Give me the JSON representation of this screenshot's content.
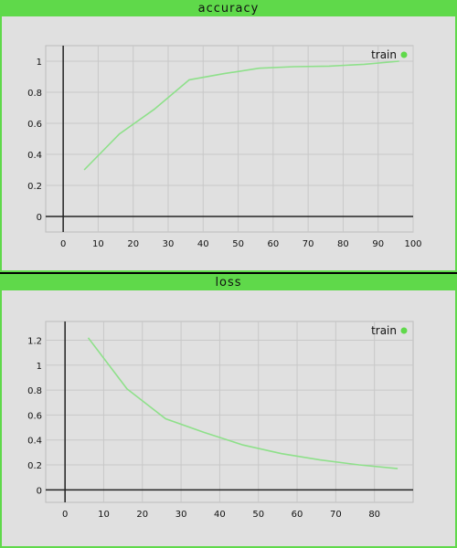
{
  "colors": {
    "accent": "#5fd94a",
    "panel_bg": "#e0e0e0",
    "plot_bg": "#e0e0e0",
    "grid": "#c8c8c8",
    "axis": "#222222",
    "series": "#8ee08a"
  },
  "panels": [
    {
      "title": "accuracy"
    },
    {
      "title": "loss"
    }
  ],
  "chart_data": [
    {
      "type": "line",
      "title": "accuracy",
      "xlabel": "",
      "ylabel": "",
      "xlim": [
        -5,
        100
      ],
      "ylim": [
        -0.1,
        1.1
      ],
      "xticks": [
        0,
        10,
        20,
        30,
        40,
        50,
        60,
        70,
        80,
        90,
        100
      ],
      "yticks": [
        0,
        0.2,
        0.4,
        0.6,
        0.8,
        1
      ],
      "grid": true,
      "legend": "top-right",
      "series": [
        {
          "name": "train",
          "x": [
            6,
            16,
            26,
            36,
            46,
            56,
            66,
            76,
            86,
            96
          ],
          "y": [
            0.3,
            0.53,
            0.69,
            0.88,
            0.92,
            0.955,
            0.965,
            0.968,
            0.98,
            1.0
          ]
        }
      ]
    },
    {
      "type": "line",
      "title": "loss",
      "xlabel": "",
      "ylabel": "",
      "xlim": [
        -5,
        90
      ],
      "ylim": [
        -0.1,
        1.35
      ],
      "xticks": [
        0,
        10,
        20,
        30,
        40,
        50,
        60,
        70,
        80
      ],
      "yticks": [
        0,
        0.2,
        0.4,
        0.6,
        0.8,
        1,
        1.2
      ],
      "grid": true,
      "legend": "top-right",
      "series": [
        {
          "name": "train",
          "x": [
            6,
            16,
            26,
            36,
            46,
            56,
            66,
            76,
            86
          ],
          "y": [
            1.22,
            0.81,
            0.57,
            0.46,
            0.36,
            0.29,
            0.24,
            0.2,
            0.17
          ]
        }
      ]
    }
  ]
}
